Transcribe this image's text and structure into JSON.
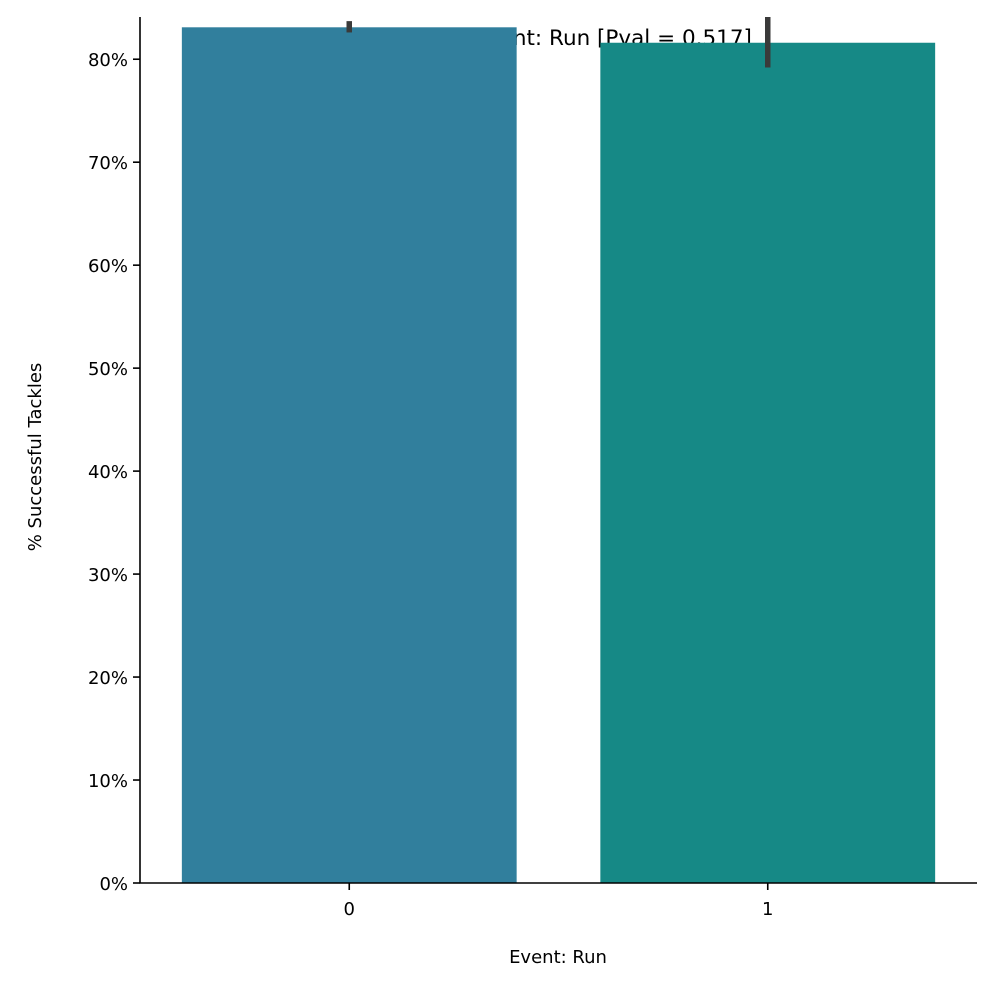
{
  "chart_data": {
    "type": "bar",
    "title": "Tackle Outcome by Event: Run [Pval = 0.517]",
    "xlabel": "Event: Run",
    "ylabel": "% Successful Tackles",
    "categories": [
      "0",
      "1"
    ],
    "values": [
      0.831,
      0.816
    ],
    "error_bars": [
      {
        "low": 0.826,
        "high": 0.837
      },
      {
        "low": 0.792,
        "high": 0.841
      }
    ],
    "bar_colors": [
      "#317f9d",
      "#168986"
    ],
    "error_bar_color": "#3a3a3a",
    "ylim": [
      0,
      0.841
    ],
    "yticks": [
      0,
      0.1,
      0.2,
      0.3,
      0.4,
      0.5,
      0.6,
      0.7,
      0.8
    ],
    "ytick_labels": [
      "0%",
      "10%",
      "20%",
      "30%",
      "40%",
      "50%",
      "60%",
      "70%",
      "80%"
    ],
    "grid": false,
    "legend": "none"
  }
}
